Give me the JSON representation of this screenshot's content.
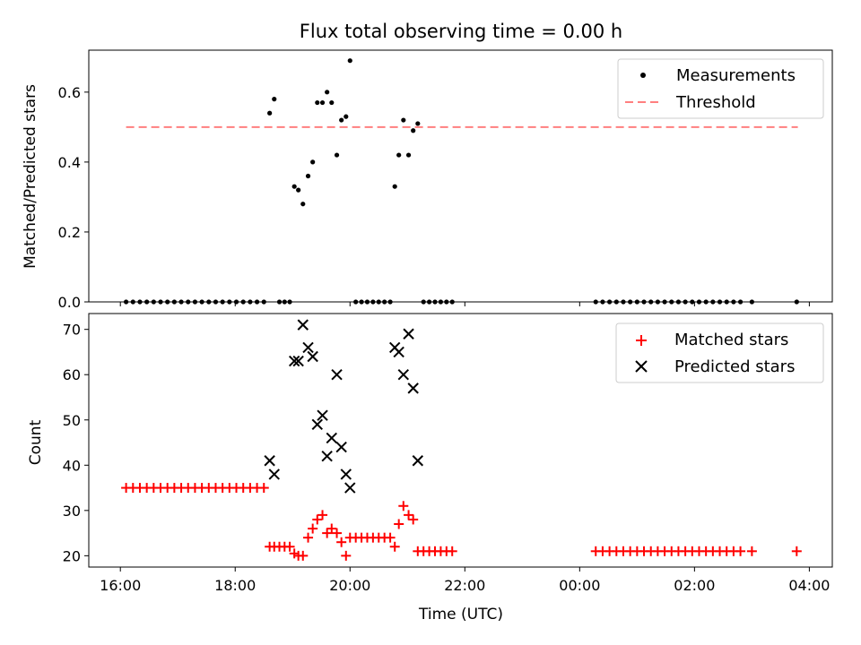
{
  "title": "Flux total observing time = 0.00 h",
  "xlabel": "Time (UTC)",
  "x_tick_labels": [
    "16:00",
    "18:00",
    "20:00",
    "22:00",
    "00:00",
    "02:00",
    "04:00"
  ],
  "colors": {
    "measurements": "#000000",
    "threshold": "#ff7f7f",
    "matched": "#ff0000",
    "predicted": "#000000"
  },
  "chart_data": [
    {
      "type": "scatter",
      "ylabel": "Matched/Predicted stars",
      "xlim_hours": [
        15.45,
        28.4
      ],
      "ylim": [
        0,
        0.72
      ],
      "yticks": [
        0.0,
        0.2,
        0.4,
        0.6
      ],
      "y_tick_labels": [
        "0.0",
        "0.2",
        "0.4",
        "0.6"
      ],
      "legend": [
        "Measurements",
        "Threshold"
      ],
      "legend_position": "top-right",
      "threshold": {
        "value": 0.5,
        "x_range_hours": [
          16.1,
          27.8
        ]
      },
      "measurements": [
        [
          16.1,
          0.0
        ],
        [
          16.22,
          0.0
        ],
        [
          16.34,
          0.0
        ],
        [
          16.46,
          0.0
        ],
        [
          16.58,
          0.0
        ],
        [
          16.7,
          0.0
        ],
        [
          16.82,
          0.0
        ],
        [
          16.94,
          0.0
        ],
        [
          17.06,
          0.0
        ],
        [
          17.18,
          0.0
        ],
        [
          17.3,
          0.0
        ],
        [
          17.42,
          0.0
        ],
        [
          17.54,
          0.0
        ],
        [
          17.66,
          0.0
        ],
        [
          17.78,
          0.0
        ],
        [
          17.9,
          0.0
        ],
        [
          18.02,
          0.0
        ],
        [
          18.14,
          0.0
        ],
        [
          18.26,
          0.0
        ],
        [
          18.38,
          0.0
        ],
        [
          18.5,
          0.0
        ],
        [
          18.6,
          0.54
        ],
        [
          18.68,
          0.58
        ],
        [
          18.77,
          0.0
        ],
        [
          18.86,
          0.0
        ],
        [
          18.95,
          0.0
        ],
        [
          19.03,
          0.33
        ],
        [
          19.1,
          0.32
        ],
        [
          19.18,
          0.28
        ],
        [
          19.27,
          0.36
        ],
        [
          19.35,
          0.4
        ],
        [
          19.43,
          0.57
        ],
        [
          19.52,
          0.57
        ],
        [
          19.6,
          0.6
        ],
        [
          19.68,
          0.57
        ],
        [
          19.77,
          0.42
        ],
        [
          19.85,
          0.52
        ],
        [
          19.93,
          0.53
        ],
        [
          20.0,
          0.69
        ],
        [
          20.1,
          0.0
        ],
        [
          20.2,
          0.0
        ],
        [
          20.3,
          0.0
        ],
        [
          20.4,
          0.0
        ],
        [
          20.5,
          0.0
        ],
        [
          20.6,
          0.0
        ],
        [
          20.7,
          0.0
        ],
        [
          20.78,
          0.33
        ],
        [
          20.85,
          0.42
        ],
        [
          20.93,
          0.52
        ],
        [
          21.02,
          0.42
        ],
        [
          21.1,
          0.49
        ],
        [
          21.18,
          0.51
        ],
        [
          21.28,
          0.0
        ],
        [
          21.38,
          0.0
        ],
        [
          21.48,
          0.0
        ],
        [
          21.58,
          0.0
        ],
        [
          21.68,
          0.0
        ],
        [
          21.78,
          0.0
        ],
        [
          24.28,
          0.0
        ],
        [
          24.4,
          0.0
        ],
        [
          24.52,
          0.0
        ],
        [
          24.64,
          0.0
        ],
        [
          24.76,
          0.0
        ],
        [
          24.88,
          0.0
        ],
        [
          25.0,
          0.0
        ],
        [
          25.12,
          0.0
        ],
        [
          25.24,
          0.0
        ],
        [
          25.36,
          0.0
        ],
        [
          25.48,
          0.0
        ],
        [
          25.6,
          0.0
        ],
        [
          25.72,
          0.0
        ],
        [
          25.84,
          0.0
        ],
        [
          25.96,
          0.0
        ],
        [
          26.08,
          0.0
        ],
        [
          26.2,
          0.0
        ],
        [
          26.32,
          0.0
        ],
        [
          26.44,
          0.0
        ],
        [
          26.56,
          0.0
        ],
        [
          26.68,
          0.0
        ],
        [
          26.8,
          0.0
        ],
        [
          27.0,
          0.0
        ],
        [
          27.78,
          0.0
        ]
      ]
    },
    {
      "type": "scatter",
      "ylabel": "Count",
      "xlim_hours": [
        15.45,
        28.4
      ],
      "ylim": [
        17.5,
        73.5
      ],
      "yticks": [
        20,
        30,
        40,
        50,
        60,
        70
      ],
      "y_tick_labels": [
        "20",
        "30",
        "40",
        "50",
        "60",
        "70"
      ],
      "legend": [
        "Matched stars",
        "Predicted stars"
      ],
      "legend_position": "top-right",
      "matched": [
        [
          16.1,
          35
        ],
        [
          16.22,
          35
        ],
        [
          16.34,
          35
        ],
        [
          16.46,
          35
        ],
        [
          16.58,
          35
        ],
        [
          16.7,
          35
        ],
        [
          16.82,
          35
        ],
        [
          16.94,
          35
        ],
        [
          17.06,
          35
        ],
        [
          17.18,
          35
        ],
        [
          17.3,
          35
        ],
        [
          17.42,
          35
        ],
        [
          17.54,
          35
        ],
        [
          17.66,
          35
        ],
        [
          17.78,
          35
        ],
        [
          17.9,
          35
        ],
        [
          18.02,
          35
        ],
        [
          18.14,
          35
        ],
        [
          18.26,
          35
        ],
        [
          18.38,
          35
        ],
        [
          18.5,
          35
        ],
        [
          18.6,
          22
        ],
        [
          18.68,
          22
        ],
        [
          18.77,
          22
        ],
        [
          18.86,
          22
        ],
        [
          18.95,
          22
        ],
        [
          19.03,
          20.5
        ],
        [
          19.1,
          20
        ],
        [
          19.18,
          20
        ],
        [
          19.27,
          24
        ],
        [
          19.35,
          26
        ],
        [
          19.43,
          28
        ],
        [
          19.52,
          29
        ],
        [
          19.6,
          25
        ],
        [
          19.68,
          26
        ],
        [
          19.77,
          25
        ],
        [
          19.85,
          23
        ],
        [
          19.93,
          20
        ],
        [
          20.0,
          24
        ],
        [
          20.1,
          24
        ],
        [
          20.2,
          24
        ],
        [
          20.3,
          24
        ],
        [
          20.4,
          24
        ],
        [
          20.5,
          24
        ],
        [
          20.6,
          24
        ],
        [
          20.7,
          24
        ],
        [
          20.78,
          22
        ],
        [
          20.85,
          27
        ],
        [
          20.93,
          31
        ],
        [
          21.02,
          29
        ],
        [
          21.1,
          28
        ],
        [
          21.18,
          21
        ],
        [
          21.28,
          21
        ],
        [
          21.38,
          21
        ],
        [
          21.48,
          21
        ],
        [
          21.58,
          21
        ],
        [
          21.68,
          21
        ],
        [
          21.78,
          21
        ],
        [
          24.28,
          21
        ],
        [
          24.4,
          21
        ],
        [
          24.52,
          21
        ],
        [
          24.64,
          21
        ],
        [
          24.76,
          21
        ],
        [
          24.88,
          21
        ],
        [
          25.0,
          21
        ],
        [
          25.12,
          21
        ],
        [
          25.24,
          21
        ],
        [
          25.36,
          21
        ],
        [
          25.48,
          21
        ],
        [
          25.6,
          21
        ],
        [
          25.72,
          21
        ],
        [
          25.84,
          21
        ],
        [
          25.96,
          21
        ],
        [
          26.08,
          21
        ],
        [
          26.2,
          21
        ],
        [
          26.32,
          21
        ],
        [
          26.44,
          21
        ],
        [
          26.56,
          21
        ],
        [
          26.68,
          21
        ],
        [
          26.8,
          21
        ],
        [
          27.0,
          21
        ],
        [
          27.78,
          21
        ]
      ],
      "predicted": [
        [
          18.6,
          41
        ],
        [
          18.68,
          38
        ],
        [
          19.03,
          63
        ],
        [
          19.1,
          63
        ],
        [
          19.18,
          71
        ],
        [
          19.27,
          66
        ],
        [
          19.35,
          64
        ],
        [
          19.43,
          49
        ],
        [
          19.52,
          51
        ],
        [
          19.6,
          42
        ],
        [
          19.68,
          46
        ],
        [
          19.77,
          60
        ],
        [
          19.85,
          44
        ],
        [
          19.93,
          38
        ],
        [
          20.0,
          35
        ],
        [
          20.78,
          66
        ],
        [
          20.85,
          65
        ],
        [
          20.93,
          60
        ],
        [
          21.02,
          69
        ],
        [
          21.1,
          57
        ],
        [
          21.18,
          41
        ]
      ]
    }
  ]
}
